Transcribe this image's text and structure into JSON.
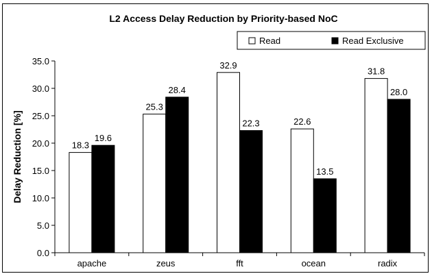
{
  "chart_data": {
    "type": "bar",
    "title": "L2 Access Delay Reduction by Priority-based NoC",
    "xlabel": "",
    "ylabel": "Delay Reduction [%]",
    "categories": [
      "apache",
      "zeus",
      "fft",
      "ocean",
      "radix"
    ],
    "series": [
      {
        "name": "Read",
        "values": [
          18.3,
          25.3,
          32.9,
          22.6,
          31.8
        ],
        "labels": [
          "18.3",
          "25.3",
          "32.9",
          "22.6",
          "31.8"
        ],
        "color": "#ffffff"
      },
      {
        "name": "Read Exclusive",
        "values": [
          19.6,
          28.4,
          22.3,
          13.5,
          28.0
        ],
        "labels": [
          "19.6",
          "28.4",
          "22.3",
          "13.5",
          "28.0"
        ],
        "color": "#000000"
      }
    ],
    "ylim": [
      0,
      35
    ],
    "yticks": [
      "0.0",
      "5.0",
      "10.0",
      "15.0",
      "20.0",
      "25.0",
      "30.0",
      "35.0"
    ],
    "legend": "top-right",
    "grid": false
  }
}
